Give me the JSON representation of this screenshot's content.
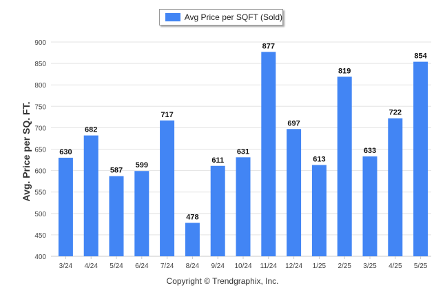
{
  "chart_data": {
    "type": "bar",
    "categories": [
      "3/24",
      "4/24",
      "5/24",
      "6/24",
      "7/24",
      "8/24",
      "9/24",
      "10/24",
      "11/24",
      "12/24",
      "1/25",
      "2/25",
      "3/25",
      "4/25",
      "5/25"
    ],
    "series": [
      {
        "name": "Avg Price per SQFT (Sold)",
        "values": [
          630,
          682,
          587,
          599,
          717,
          478,
          611,
          631,
          877,
          697,
          613,
          819,
          633,
          722,
          854
        ]
      }
    ],
    "ylabel": "Avg. Price per SQ. FT.",
    "ylim": [
      400,
      900
    ],
    "yticks": [
      400,
      450,
      500,
      550,
      600,
      650,
      700,
      750,
      800,
      850,
      900
    ],
    "legend_position": "top-center",
    "grid": true,
    "bar_color": "#4285f4",
    "footer": "Copyright © Trendgraphix, Inc."
  }
}
